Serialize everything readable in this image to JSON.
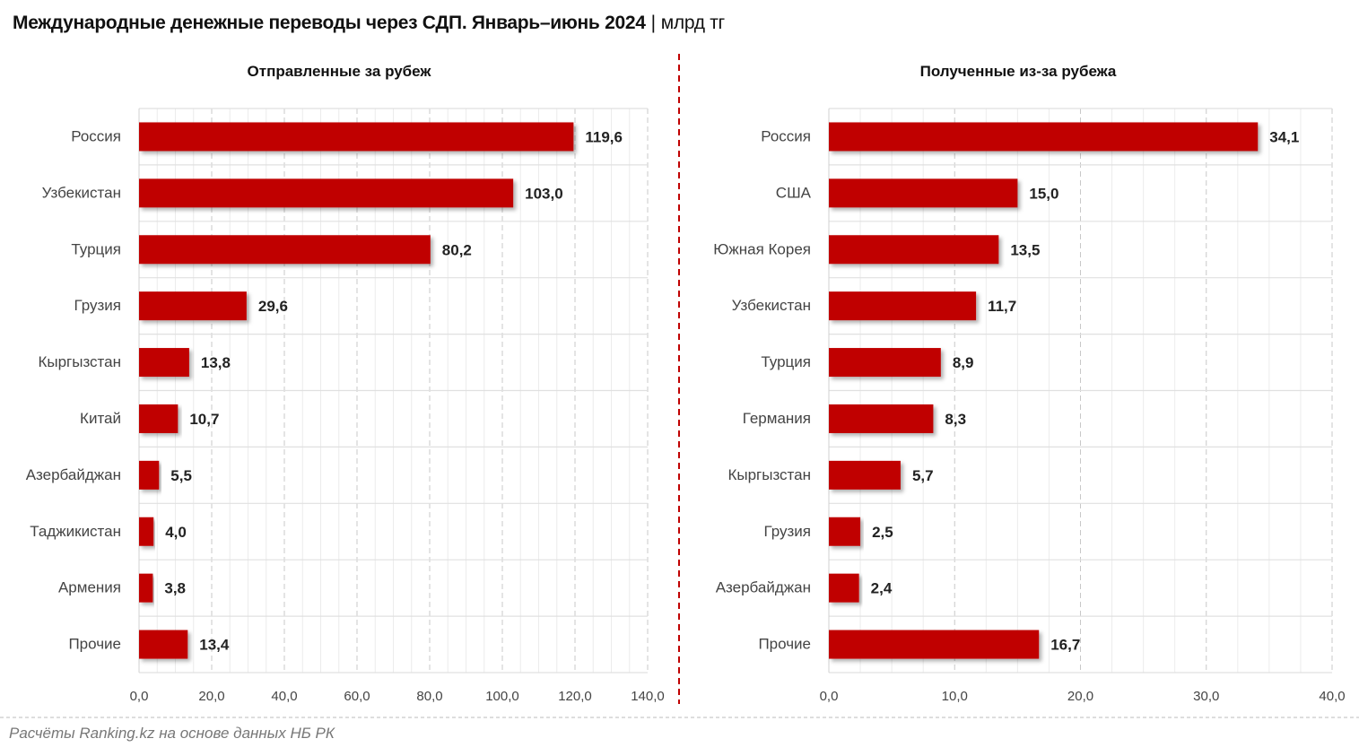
{
  "title": "Международные денежные переводы через СДП. Январь–июнь 2024",
  "unit": "млрд тг",
  "source": "Расчёты Ranking.kz на основе данных НБ РК",
  "colors": {
    "bar": "#C00000",
    "divider": "#C00000",
    "grid": "#d9d9d9"
  },
  "chart_data": [
    {
      "type": "bar",
      "orientation": "horizontal",
      "title": "Отправленные за рубеж",
      "categories": [
        "Россия",
        "Узбекистан",
        "Турция",
        "Грузия",
        "Кыргызстан",
        "Китай",
        "Азербайджан",
        "Таджикистан",
        "Армения",
        "Прочие"
      ],
      "values": [
        119.6,
        103.0,
        80.2,
        29.6,
        13.8,
        10.7,
        5.5,
        4.0,
        3.8,
        13.4
      ],
      "xlim": [
        0,
        140
      ],
      "ticks": [
        "0,0",
        "20,0",
        "40,0",
        "60,0",
        "80,0",
        "100,0",
        "120,0",
        "140,0"
      ],
      "labels": [
        "119,6",
        "103,0",
        "80,2",
        "29,6",
        "13,8",
        "10,7",
        "5,5",
        "4,0",
        "3,8",
        "13,4"
      ],
      "grid": true
    },
    {
      "type": "bar",
      "orientation": "horizontal",
      "title": "Полученные из-за рубежа",
      "categories": [
        "Россия",
        "США",
        "Южная Корея",
        "Узбекистан",
        "Турция",
        "Германия",
        "Кыргызстан",
        "Грузия",
        "Азербайджан",
        "Прочие"
      ],
      "values": [
        34.1,
        15.0,
        13.5,
        11.7,
        8.9,
        8.3,
        5.7,
        2.5,
        2.4,
        16.7
      ],
      "xlim": [
        0,
        40
      ],
      "ticks": [
        "0,0",
        "10,0",
        "20,0",
        "30,0",
        "40,0"
      ],
      "labels": [
        "34,1",
        "15,0",
        "13,5",
        "11,7",
        "8,9",
        "8,3",
        "5,7",
        "2,5",
        "2,4",
        "16,7"
      ],
      "grid": true
    }
  ]
}
